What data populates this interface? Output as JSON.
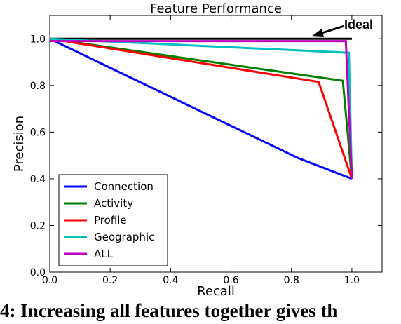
{
  "chart_data": {
    "type": "line",
    "title": "Feature Performance",
    "xlabel": "Recall",
    "ylabel": "Precision",
    "xlim": [
      0.0,
      1.1
    ],
    "ylim": [
      0.0,
      1.1
    ],
    "xticks": [
      0.0,
      0.2,
      0.4,
      0.6,
      0.8,
      1.0
    ],
    "xtick_labels": [
      "0.0",
      "0.2",
      "0.4",
      "0.6",
      "0.8",
      "1.0"
    ],
    "yticks": [
      0.0,
      0.2,
      0.4,
      0.6,
      0.8,
      1.0
    ],
    "ytick_labels": [
      "0.0",
      "0.2",
      "0.4",
      "0.6",
      "0.8",
      "1.0"
    ],
    "grid": false,
    "legend_position": "lower-left",
    "series": [
      {
        "name": "Connection",
        "color": "#0000ff",
        "x": [
          0.0,
          0.82,
          1.0
        ],
        "y": [
          1.0,
          0.49,
          0.4
        ]
      },
      {
        "name": "Activity",
        "color": "#008000",
        "x": [
          0.0,
          0.97,
          1.0
        ],
        "y": [
          1.0,
          0.82,
          0.4
        ]
      },
      {
        "name": "Profile",
        "color": "#ff0000",
        "x": [
          0.0,
          0.89,
          1.0
        ],
        "y": [
          1.0,
          0.815,
          0.4
        ]
      },
      {
        "name": "Geographic",
        "color": "#00bfbf",
        "x": [
          0.0,
          0.99,
          1.0
        ],
        "y": [
          1.0,
          0.94,
          0.4
        ]
      },
      {
        "name": "ALL",
        "color": "#bf00bf",
        "x": [
          0.0,
          0.98,
          1.0
        ],
        "y": [
          0.99,
          0.99,
          0.4
        ]
      }
    ],
    "ideal": {
      "x": [
        0.0,
        1.0
      ],
      "y": [
        1.0,
        1.0
      ],
      "color": "#000000"
    },
    "annotation": {
      "text": "Ideal",
      "arrow_target": [
        0.87,
        1.02
      ]
    }
  },
  "caption": "4: Increasing all features together gives th"
}
